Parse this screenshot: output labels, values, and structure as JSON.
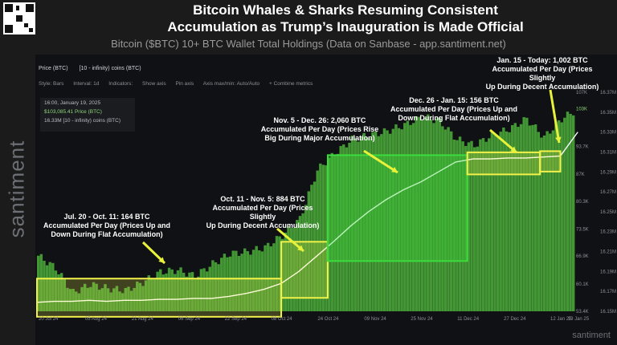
{
  "header": {
    "title_line1": "Bitcoin Whales & Sharks Resuming Consistent",
    "title_line2": "Accumulation as Trump’s Inauguration is Made Official",
    "subtitle": "Bitcoin ($BTC) 10+ BTC Wallet Total Holdings (Data on Sanbase - app.santiment.net)"
  },
  "legend": {
    "series1": "Price (BTC)",
    "series2": "[10 - infinity) coins (BTC)"
  },
  "toolbar": [
    "Style: Bars",
    "Interval: 1d",
    "Indicators:",
    "Show axis",
    "Pin axis",
    "Axis max/min: Auto/Auto",
    "+ Combine metrics"
  ],
  "infobox": {
    "date": "16:00, January 19, 2025",
    "price": "$103,085.41 Price (BTC)",
    "holdings": "16.33M [10 - infinity) coins (BTC)"
  },
  "watermark": "santiment",
  "colors": {
    "price": "#4caf3a",
    "holdings": "#ffffff",
    "box_yellow": "#f2f24a",
    "box_green": "#3ddc3d",
    "arrow": "#e8f23a"
  },
  "chart_data": {
    "type": "area",
    "x_tick_labels": [
      "20 Jul 24",
      "05 Aug 24",
      "21 Aug 24",
      "06 Sep 24",
      "22 Sep 24",
      "08 Oct 24",
      "24 Oct 24",
      "09 Nov 24",
      "25 Nov 24",
      "11 Dec 24",
      "27 Dec 24",
      "12 Jan 25",
      "19 Jan 25"
    ],
    "price_ticks": [
      "53.4K",
      "60.1K",
      "66.9K",
      "73.5K",
      "80.3K",
      "87K",
      "93.7K",
      "103K",
      "107K"
    ],
    "holdings_ticks": [
      "16.15M",
      "16.16M",
      "16.17M",
      "16.18M",
      "16.19M",
      "16.20M",
      "16.21M",
      "16.22M",
      "16.23M",
      "16.24M",
      "16.25M",
      "16.26M",
      "16.27M",
      "16.28M",
      "16.29M",
      "16.30M",
      "16.31M",
      "16.32M",
      "16.33M",
      "16.34M",
      "16.35M",
      "16.36M",
      "16.37M"
    ],
    "price_ylim": [
      53400,
      107000
    ],
    "holdings_ylim": [
      16.15,
      16.37
    ],
    "series": [
      {
        "name": "[10 - infinity) coins (BTC)",
        "x_index": [
          0,
          6,
          12,
          18,
          24,
          30,
          36,
          42,
          48,
          54,
          60,
          66,
          72,
          78,
          84,
          90,
          96,
          102,
          108,
          114,
          120,
          126,
          132,
          138,
          144,
          150,
          156,
          162,
          168,
          174,
          180,
          186
        ],
        "values": [
          16.159,
          16.16,
          16.16,
          16.161,
          16.16,
          16.161,
          16.161,
          16.162,
          16.162,
          16.163,
          16.163,
          16.165,
          16.168,
          16.172,
          16.178,
          16.19,
          16.205,
          16.22,
          16.236,
          16.25,
          16.262,
          16.272,
          16.28,
          16.29,
          16.3,
          16.303,
          16.303,
          16.304,
          16.304,
          16.305,
          16.306,
          16.33
        ]
      },
      {
        "name": "Price (BTC)",
        "x_index": [
          0,
          6,
          12,
          18,
          24,
          30,
          36,
          42,
          48,
          54,
          60,
          66,
          72,
          78,
          84,
          90,
          96,
          102,
          108,
          114,
          120,
          126,
          132,
          138,
          144,
          150,
          156,
          162,
          168,
          174,
          180,
          186
        ],
        "values": [
          67000,
          64000,
          58000,
          60000,
          59000,
          58500,
          60500,
          63000,
          63500,
          62000,
          65000,
          67500,
          68000,
          69000,
          72000,
          76000,
          88000,
          92000,
          95500,
          96500,
          97500,
          99000,
          101000,
          100000,
          95500,
          94000,
          96500,
          98000,
          100500,
          96000,
          100500,
          103085
        ]
      }
    ],
    "annotations": [
      {
        "text_lines": [
          "Jul. 20 - Oct. 11: 164 BTC",
          "Accumulated Per Day (Prices Up and",
          "Down During Flat Accumulation)"
        ]
      },
      {
        "text_lines": [
          "Oct. 11 - Nov. 5: 884 BTC",
          "Accumulated Per Day (Prices Slightly",
          "Up During Decent Accumulation)"
        ]
      },
      {
        "text_lines": [
          "Nov. 5 - Dec. 26: 2,060 BTC",
          "Accumulated Per Day (Prices Rise",
          "Big During Major Accumulation)"
        ]
      },
      {
        "text_lines": [
          "Dec. 26 - Jan. 15: 156 BTC",
          "Accumulated Per Day (Prices Up and",
          "Down During Flat Accumulation)"
        ]
      },
      {
        "text_lines": [
          "Jan. 15 - Today: 1,002 BTC",
          "Accumulated Per Day (Prices Slightly",
          "Up During Decent Accumulation)"
        ]
      }
    ],
    "x_periods": [
      {
        "start": 0,
        "end": 84,
        "style": "yellow"
      },
      {
        "start": 84,
        "end": 100,
        "style": "yellow"
      },
      {
        "start": 100,
        "end": 148,
        "style": "green"
      },
      {
        "start": 148,
        "end": 173,
        "style": "yellow"
      },
      {
        "start": 173,
        "end": 180,
        "style": "yellow"
      }
    ],
    "x_range": [
      0,
      184
    ],
    "grid": false,
    "legend": "top-left"
  }
}
